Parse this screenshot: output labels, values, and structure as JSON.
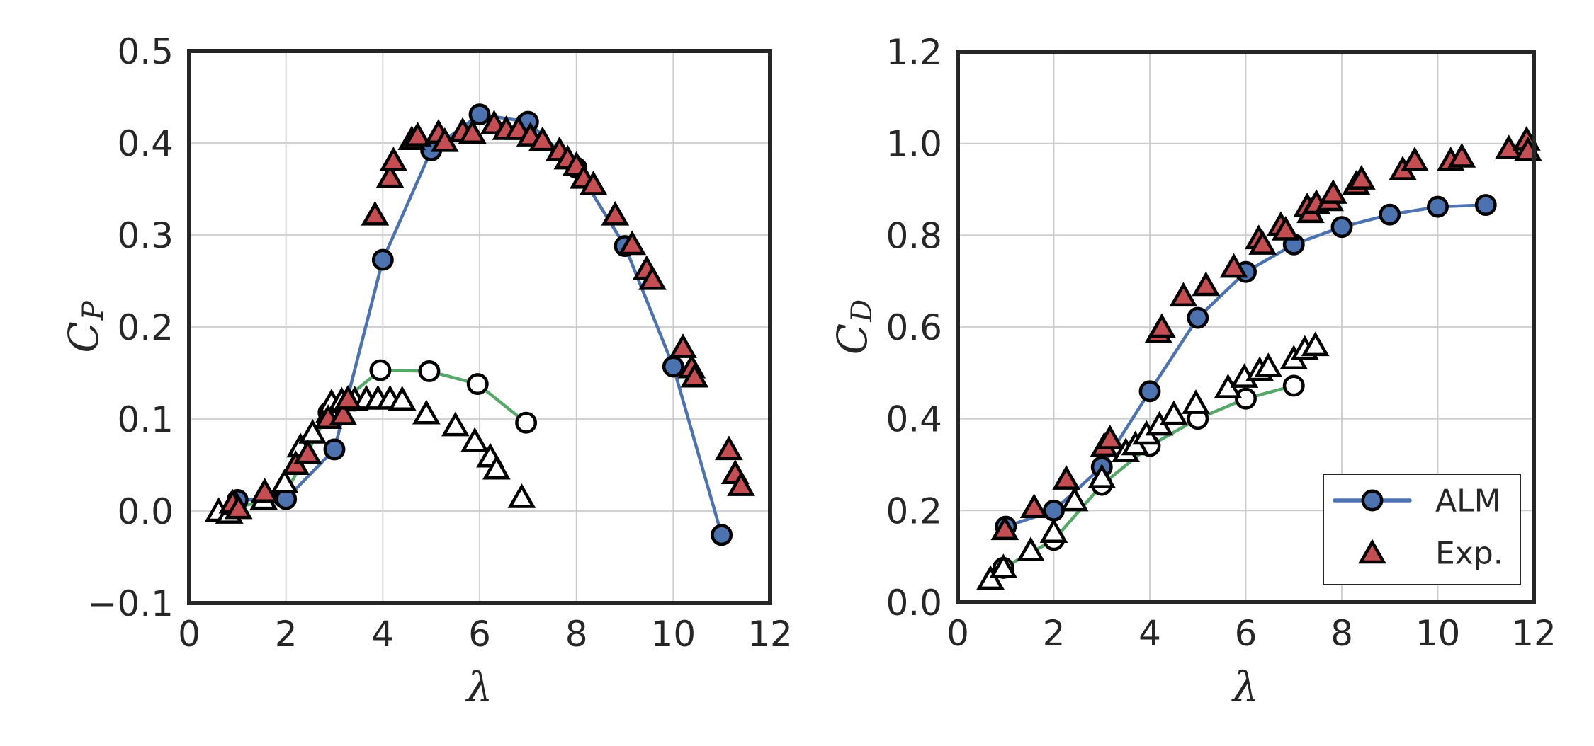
{
  "figure": {
    "background": "#ffffff",
    "description": "Two-panel scatter/line chart comparing ALM simulation to experiment"
  },
  "style": {
    "alm_blue": "#4C72B0",
    "exp_red": "#C44E52",
    "open_green": "#55A868",
    "open_marker_fill": "#ffffff",
    "marker_edge": "#000000",
    "text_color": "#262626",
    "grid_color": "#cccccc",
    "spine_color": "#262626"
  },
  "legend": {
    "entries": [
      {
        "label": "ALM",
        "marker": "circle",
        "fill": "solid",
        "color_key": "alm_blue",
        "line": true
      },
      {
        "label": "Exp.",
        "marker": "triangle",
        "fill": "solid",
        "color_key": "exp_red",
        "line": false
      }
    ]
  },
  "chart_data": [
    {
      "id": "cp-plot",
      "type": "scatter",
      "title": "",
      "xlabel": "λ",
      "ylabel_base": "C",
      "ylabel_sub": "P",
      "xlim": [
        0,
        12
      ],
      "ylim": [
        -0.1,
        0.5
      ],
      "xticks": [
        0,
        2,
        4,
        6,
        8,
        10,
        12
      ],
      "xtick_labels": [
        "0",
        "2",
        "4",
        "6",
        "8",
        "10",
        "12"
      ],
      "yticks": [
        -0.1,
        0.0,
        0.1,
        0.2,
        0.3,
        0.4,
        0.5
      ],
      "ytick_labels": [
        "−0.1",
        "0.0",
        "0.1",
        "0.2",
        "0.3",
        "0.4",
        "0.5"
      ],
      "grid": true,
      "show_legend": false,
      "series": [
        {
          "name": "open-circles-green-line",
          "legend_label": null,
          "marker": "circle",
          "fill": "open",
          "line": true,
          "color_key": "open_green",
          "points": [
            [
              0.95,
              0.004
            ],
            [
              1.95,
              0.015
            ],
            [
              2.88,
              0.107
            ],
            [
              3.95,
              0.153
            ],
            [
              4.96,
              0.152
            ],
            [
              5.96,
              0.138
            ],
            [
              6.96,
              0.096
            ]
          ]
        },
        {
          "name": "ALM",
          "legend_label": "ALM",
          "marker": "circle",
          "fill": "solid",
          "line": true,
          "color_key": "alm_blue",
          "points": [
            [
              1,
              0.012
            ],
            [
              2,
              0.013
            ],
            [
              3,
              0.067
            ],
            [
              4,
              0.273
            ],
            [
              5,
              0.392
            ],
            [
              6,
              0.431
            ],
            [
              7,
              0.423
            ],
            [
              8,
              0.373
            ],
            [
              9,
              0.288
            ],
            [
              10,
              0.157
            ],
            [
              11,
              -0.026
            ]
          ]
        },
        {
          "name": "open-triangles",
          "legend_label": null,
          "marker": "triangle",
          "fill": "open",
          "line": false,
          "color_key": "marker_edge",
          "points": [
            [
              0.61,
              0.0
            ],
            [
              0.83,
              -0.002
            ],
            [
              0.97,
              0.007
            ],
            [
              1.54,
              0.013
            ],
            [
              1.97,
              0.031
            ],
            [
              2.3,
              0.07
            ],
            [
              2.55,
              0.085
            ],
            [
              2.9,
              0.108
            ],
            [
              2.94,
              0.118
            ],
            [
              3.15,
              0.12
            ],
            [
              3.42,
              0.121
            ],
            [
              3.66,
              0.122
            ],
            [
              3.9,
              0.122
            ],
            [
              4.15,
              0.122
            ],
            [
              4.4,
              0.121
            ],
            [
              4.9,
              0.106
            ],
            [
              5.5,
              0.093
            ],
            [
              5.9,
              0.076
            ],
            [
              6.22,
              0.059
            ],
            [
              6.35,
              0.046
            ],
            [
              6.87,
              0.015
            ]
          ]
        },
        {
          "name": "Exp.",
          "legend_label": "Exp.",
          "marker": "triangle",
          "fill": "solid",
          "line": false,
          "color_key": "exp_red",
          "points": [
            [
              0.9,
              0.009
            ],
            [
              1.02,
              0.003
            ],
            [
              1.56,
              0.021
            ],
            [
              2.2,
              0.051
            ],
            [
              2.45,
              0.063
            ],
            [
              2.87,
              0.101
            ],
            [
              3.18,
              0.105
            ],
            [
              3.28,
              0.122
            ],
            [
              3.84,
              0.322
            ],
            [
              4.15,
              0.363
            ],
            [
              4.22,
              0.381
            ],
            [
              4.6,
              0.404
            ],
            [
              4.72,
              0.408
            ],
            [
              5.15,
              0.411
            ],
            [
              5.28,
              0.402
            ],
            [
              5.65,
              0.413
            ],
            [
              5.85,
              0.411
            ],
            [
              6.3,
              0.421
            ],
            [
              6.55,
              0.415
            ],
            [
              6.8,
              0.415
            ],
            [
              7.05,
              0.408
            ],
            [
              7.3,
              0.403
            ],
            [
              7.65,
              0.392
            ],
            [
              7.82,
              0.383
            ],
            [
              8.0,
              0.376
            ],
            [
              8.15,
              0.362
            ],
            [
              8.35,
              0.355
            ],
            [
              8.8,
              0.322
            ],
            [
              9.15,
              0.29
            ],
            [
              9.45,
              0.263
            ],
            [
              9.57,
              0.252
            ],
            [
              10.2,
              0.178
            ],
            [
              10.38,
              0.156
            ],
            [
              10.44,
              0.146
            ],
            [
              11.15,
              0.067
            ],
            [
              11.28,
              0.041
            ],
            [
              11.4,
              0.028
            ]
          ]
        }
      ]
    },
    {
      "id": "cd-plot",
      "type": "scatter",
      "title": "",
      "xlabel": "λ",
      "ylabel_base": "C",
      "ylabel_sub": "D",
      "xlim": [
        0,
        12
      ],
      "ylim": [
        0.0,
        1.2
      ],
      "xticks": [
        0,
        2,
        4,
        6,
        8,
        10,
        12
      ],
      "xtick_labels": [
        "0",
        "2",
        "4",
        "6",
        "8",
        "10",
        "12"
      ],
      "yticks": [
        0.0,
        0.2,
        0.4,
        0.6,
        0.8,
        1.0,
        1.2
      ],
      "ytick_labels": [
        "0.0",
        "0.2",
        "0.4",
        "0.6",
        "0.8",
        "1.0",
        "1.2"
      ],
      "grid": true,
      "show_legend": true,
      "series": [
        {
          "name": "open-circles-green-line",
          "legend_label": null,
          "marker": "circle",
          "fill": "open",
          "line": true,
          "color_key": "open_green",
          "points": [
            [
              0.95,
              0.075
            ],
            [
              2.0,
              0.136
            ],
            [
              3.0,
              0.256
            ],
            [
              4.0,
              0.341
            ],
            [
              5.0,
              0.4
            ],
            [
              6.0,
              0.444
            ],
            [
              7.0,
              0.472
            ]
          ]
        },
        {
          "name": "ALM",
          "legend_label": "ALM",
          "marker": "circle",
          "fill": "solid",
          "line": true,
          "color_key": "alm_blue",
          "points": [
            [
              1,
              0.165
            ],
            [
              2,
              0.2
            ],
            [
              3,
              0.295
            ],
            [
              4,
              0.46
            ],
            [
              5,
              0.62
            ],
            [
              6,
              0.72
            ],
            [
              7,
              0.78
            ],
            [
              8,
              0.818
            ],
            [
              9,
              0.845
            ],
            [
              10,
              0.862
            ],
            [
              11,
              0.866
            ]
          ]
        },
        {
          "name": "open-triangles",
          "legend_label": null,
          "marker": "triangle",
          "fill": "open",
          "line": false,
          "color_key": "marker_edge",
          "points": [
            [
              0.68,
              0.051
            ],
            [
              0.95,
              0.076
            ],
            [
              1.52,
              0.113
            ],
            [
              2.0,
              0.153
            ],
            [
              2.43,
              0.222
            ],
            [
              3.0,
              0.272
            ],
            [
              3.5,
              0.329
            ],
            [
              3.7,
              0.344
            ],
            [
              3.93,
              0.367
            ],
            [
              4.2,
              0.387
            ],
            [
              4.5,
              0.41
            ],
            [
              4.96,
              0.434
            ],
            [
              5.63,
              0.468
            ],
            [
              5.97,
              0.491
            ],
            [
              6.29,
              0.506
            ],
            [
              6.47,
              0.514
            ],
            [
              7.0,
              0.531
            ],
            [
              7.23,
              0.552
            ],
            [
              7.45,
              0.56
            ]
          ]
        },
        {
          "name": "Exp.",
          "legend_label": "Exp.",
          "marker": "triangle",
          "fill": "solid",
          "line": false,
          "color_key": "exp_red",
          "points": [
            [
              0.98,
              0.159
            ],
            [
              1.59,
              0.207
            ],
            [
              2.26,
              0.269
            ],
            [
              3.05,
              0.341
            ],
            [
              3.17,
              0.357
            ],
            [
              4.18,
              0.588
            ],
            [
              4.25,
              0.6
            ],
            [
              4.7,
              0.668
            ],
            [
              5.17,
              0.691
            ],
            [
              5.75,
              0.731
            ],
            [
              6.27,
              0.793
            ],
            [
              6.35,
              0.781
            ],
            [
              6.73,
              0.822
            ],
            [
              6.83,
              0.812
            ],
            [
              7.28,
              0.863
            ],
            [
              7.35,
              0.85
            ],
            [
              7.47,
              0.87
            ],
            [
              7.75,
              0.876
            ],
            [
              7.82,
              0.892
            ],
            [
              8.3,
              0.912
            ],
            [
              8.41,
              0.923
            ],
            [
              9.27,
              0.943
            ],
            [
              9.52,
              0.963
            ],
            [
              10.27,
              0.963
            ],
            [
              10.5,
              0.971
            ],
            [
              11.48,
              0.989
            ],
            [
              11.85,
              1.008
            ],
            [
              11.88,
              0.985
            ]
          ]
        }
      ]
    }
  ]
}
